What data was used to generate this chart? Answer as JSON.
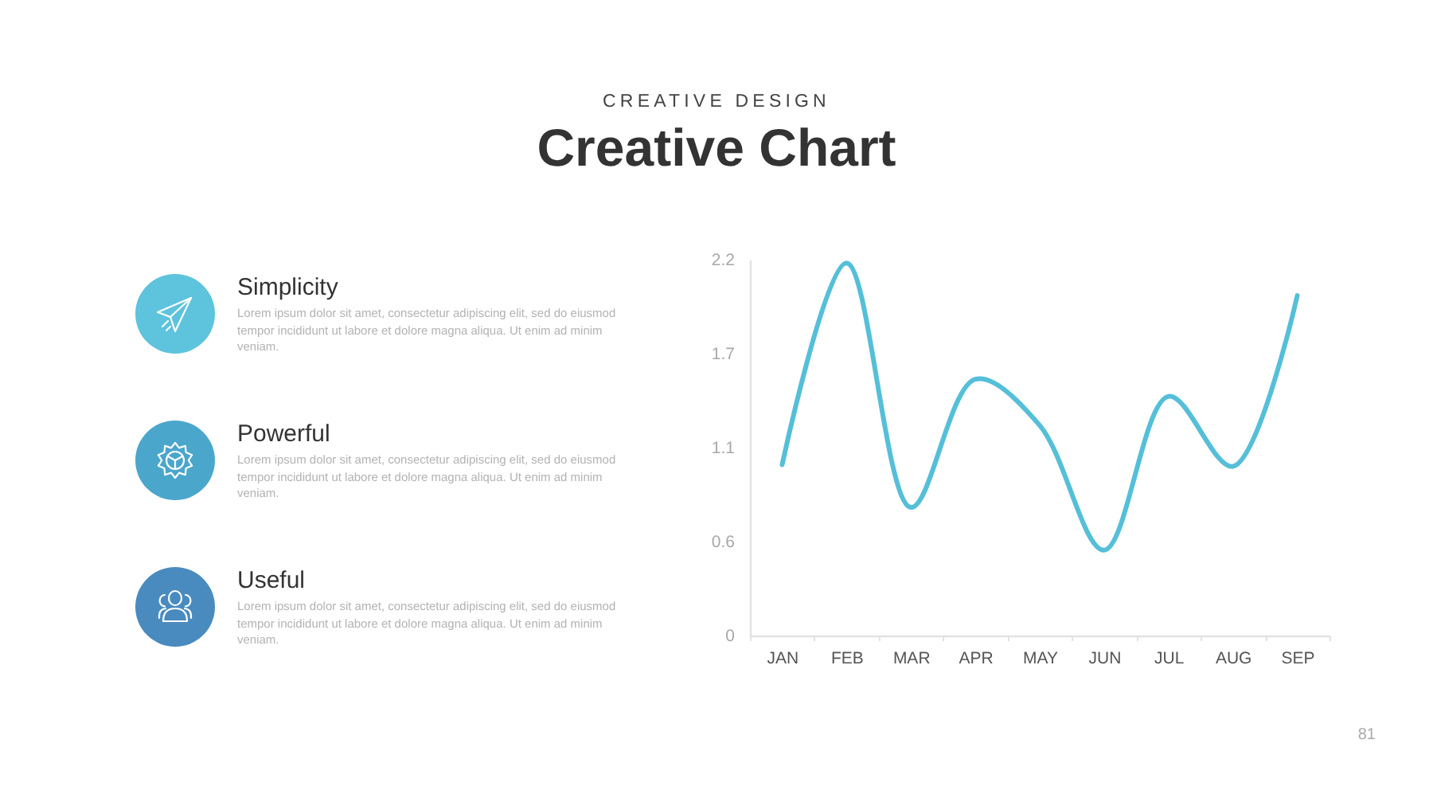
{
  "chart_data": [
    {
      "type": "other",
      "categories": [
        "Simplicity",
        "Powerful",
        "Useful"
      ],
      "annotations": [
        "Lorem ipsum dolor sit amet, consectetur adipiscing elit, sed do eiusmod tempor incididunt ut labore et dolore magna aliqua. Ut enim ad minim veniam.",
        "Lorem ipsum dolor sit amet, consectetur adipiscing elit, sed do eiusmod tempor incididunt ut labore et dolore magna aliqua. Ut enim ad minim veniam.",
        "Lorem ipsum dolor sit amet, consectetur adipiscing elit, sed do eiusmod tempor incididunt ut labore et dolore magna aliqua. Ut enim ad minim veniam."
      ]
    },
    {
      "type": "line",
      "title": "Creative Chart",
      "subtitle": "CREATIVE DESIGN",
      "categories": [
        "JAN",
        "FEB",
        "MAR",
        "APR",
        "MAY",
        "JUN",
        "JUL",
        "AUG",
        "SEP"
      ],
      "series": [
        {
          "color": "#55bfd9",
          "values": [
            1.0,
            2.18,
            0.75,
            1.5,
            1.23,
            0.5,
            1.4,
            0.99,
            1.99
          ]
        }
      ],
      "ylim": [
        0,
        2.2
      ],
      "yticks": [
        0,
        {
          "value": 0.55,
          "label": "0.6"
        },
        1.1,
        {
          "value": 1.65,
          "label": "1.7"
        },
        2.2
      ],
      "annotations": [
        "81"
      ]
    }
  ]
}
